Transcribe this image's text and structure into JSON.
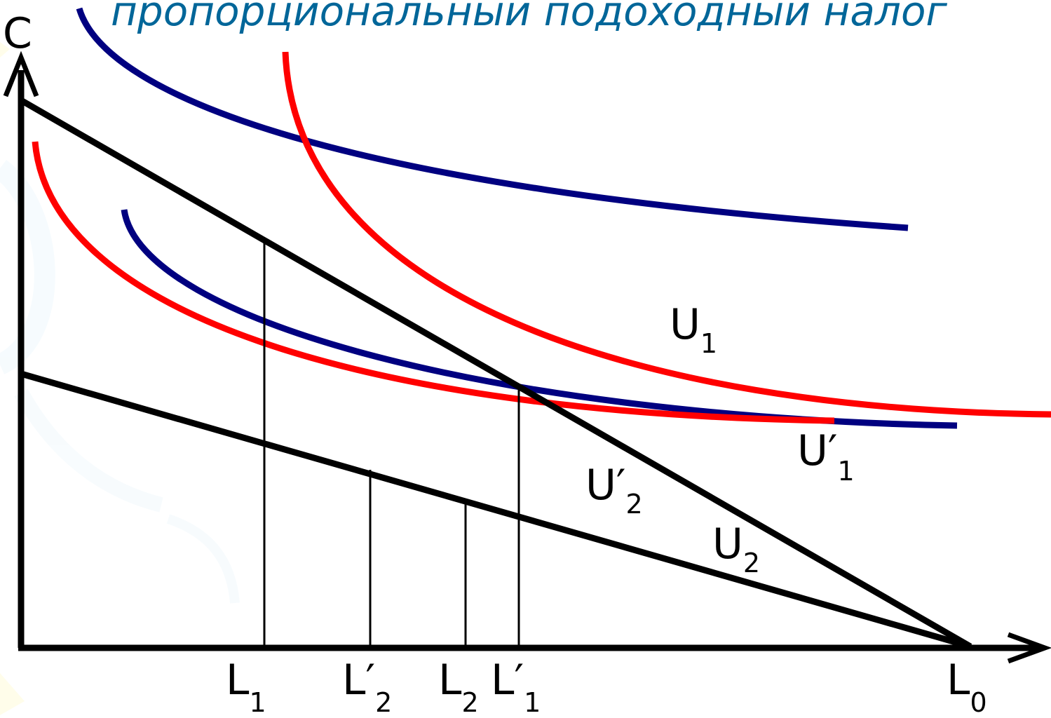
{
  "title": "пропорциональный подоходный налог",
  "axis": {
    "y_label": "C",
    "x_marks": [
      {
        "main": "L",
        "prime": "",
        "sub": "1"
      },
      {
        "main": "L",
        "prime": "′",
        "sub": "2"
      },
      {
        "main": "L",
        "prime": "",
        "sub": "2"
      },
      {
        "main": "L",
        "prime": "′",
        "sub": "1"
      },
      {
        "main": "L",
        "prime": "",
        "sub": "0"
      }
    ]
  },
  "curves": {
    "u1": {
      "main": "U",
      "prime": "",
      "sub": "1"
    },
    "u1p": {
      "main": "U",
      "prime": "′",
      "sub": "1"
    },
    "u2p": {
      "main": "U",
      "prime": "′",
      "sub": "2"
    },
    "u2": {
      "main": "U",
      "prime": "",
      "sub": "2"
    }
  },
  "colors": {
    "title": "#006699",
    "axes": "#000000",
    "budget": "#000000",
    "red_curve": "#ff0000",
    "blue_curve": "#000080"
  }
}
